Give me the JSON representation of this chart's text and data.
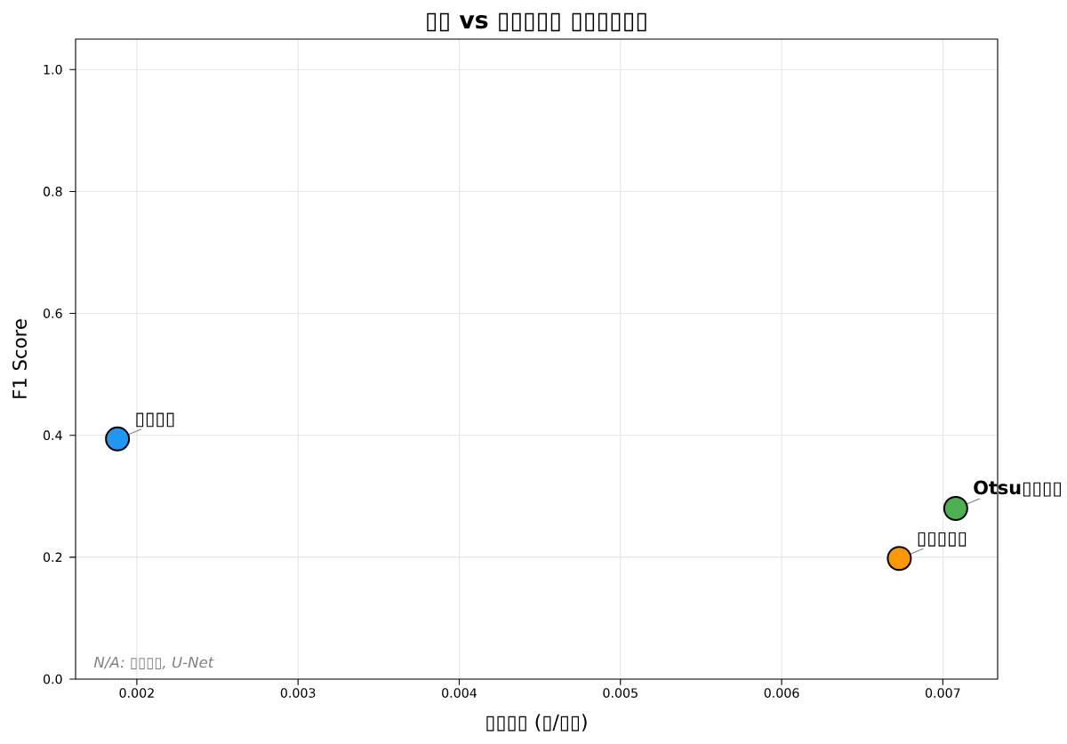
{
  "chart_data": {
    "type": "scatter",
    "title": "▯▯ vs ▯▯▯▯▯ ▯▯▯▯▯▯",
    "xlabel": "▯▯▯▯ (▯/▯▯)",
    "ylabel": "F1 Score",
    "series": [
      {
        "name": "▯▯▯▯",
        "color": "#2196f3",
        "x": [
          0.00188
        ],
        "values": [
          0.394
        ]
      },
      {
        "name": "▯▯▯▯▯",
        "color": "#ff9800",
        "x": [
          0.00673
        ],
        "values": [
          0.198
        ]
      },
      {
        "name": "Otsu▯▯▯▯",
        "color": "#4caf50",
        "x": [
          0.00708
        ],
        "values": [
          0.28
        ]
      }
    ],
    "xlim": [
      0.00162,
      0.00734
    ],
    "ylim": [
      0,
      1.05
    ],
    "xticks": [
      0.002,
      0.003,
      0.004,
      0.005,
      0.006,
      0.007
    ],
    "yticks": [
      {
        "value": 0,
        "label": "0.0"
      },
      {
        "value": 0.2,
        "label": "0.2"
      },
      {
        "value": 0.4,
        "label": "0.4"
      },
      {
        "value": 0.6,
        "label": "0.6"
      },
      {
        "value": 0.8,
        "label": "0.8"
      },
      {
        "value": 1,
        "label": "1.0"
      }
    ],
    "grid": true,
    "marker": "circle",
    "annotations": [
      "N/A: ▯▯▯▯, U-Net"
    ]
  }
}
